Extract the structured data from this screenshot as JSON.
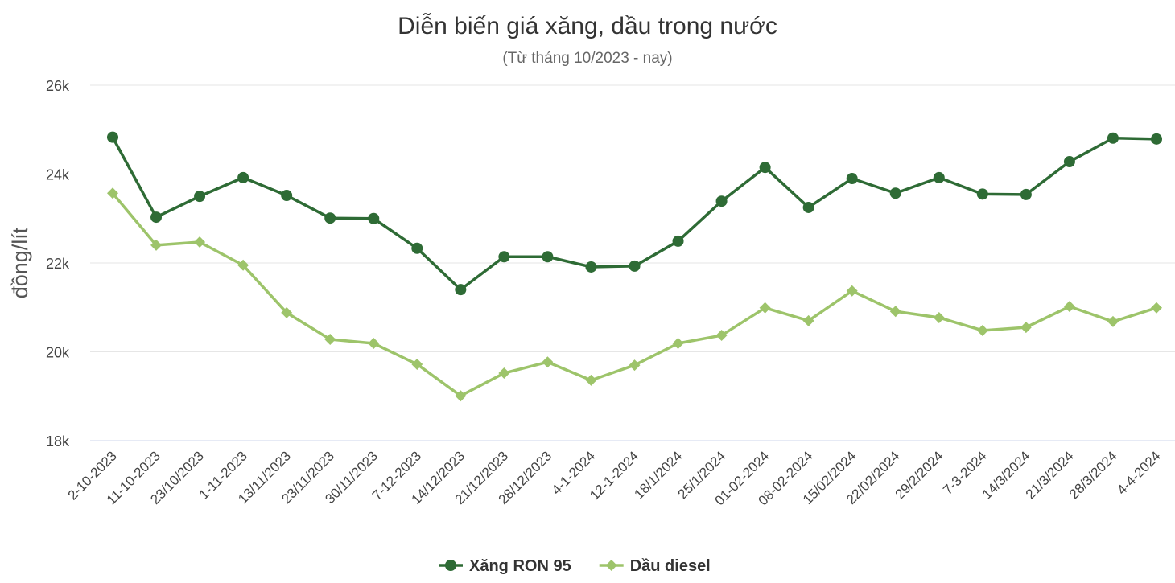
{
  "chart_data": {
    "type": "line",
    "title": "Diễn biến giá xăng, dầu trong nước",
    "subtitle": "(Từ tháng 10/2023 - nay)",
    "y_label": "đồng/lít",
    "categories": [
      "2-10-2023",
      "11-10-2023",
      "23/10/2023",
      "1-11-2023",
      "13/11/2023",
      "23/11/2023",
      "30/11/2023",
      "7-12-2023",
      "14/12/2023",
      "21/12/2023",
      "28/12/2023",
      "4-1-2024",
      "12-1-2024",
      "18/1/2024",
      "25/1/2024",
      "01-02-2024",
      "08-02-2024",
      "15/02/2024",
      "22/02/2024",
      "29/2/2024",
      "7-3-2024",
      "14/3/2024",
      "21/3/2024",
      "28/3/2024",
      "4-4-2024"
    ],
    "series": [
      {
        "name": "Xăng RON 95",
        "color": "#2e6b35",
        "marker": "circle",
        "values": [
          24830,
          23030,
          23500,
          23920,
          23520,
          23010,
          23000,
          22330,
          21400,
          22140,
          22140,
          21910,
          21930,
          22490,
          23390,
          24150,
          23250,
          23900,
          23570,
          23920,
          23550,
          23540,
          24280,
          24810,
          24790
        ]
      },
      {
        "name": "Dầu diesel",
        "color": "#9dc46a",
        "marker": "diamond",
        "values": [
          23570,
          22400,
          22470,
          21950,
          20880,
          20280,
          20190,
          19720,
          19010,
          19520,
          19770,
          19360,
          19700,
          20190,
          20370,
          20990,
          20700,
          21370,
          20910,
          20770,
          20480,
          20550,
          21020,
          20680,
          20990
        ]
      }
    ],
    "ylim": [
      18000,
      26000
    ],
    "yticks": [
      {
        "value": 18000,
        "label": "18k"
      },
      {
        "value": 20000,
        "label": "20k"
      },
      {
        "value": 22000,
        "label": "22k"
      },
      {
        "value": 24000,
        "label": "24k"
      },
      {
        "value": 26000,
        "label": "26k"
      }
    ],
    "grid": true,
    "legend": "bottom"
  }
}
